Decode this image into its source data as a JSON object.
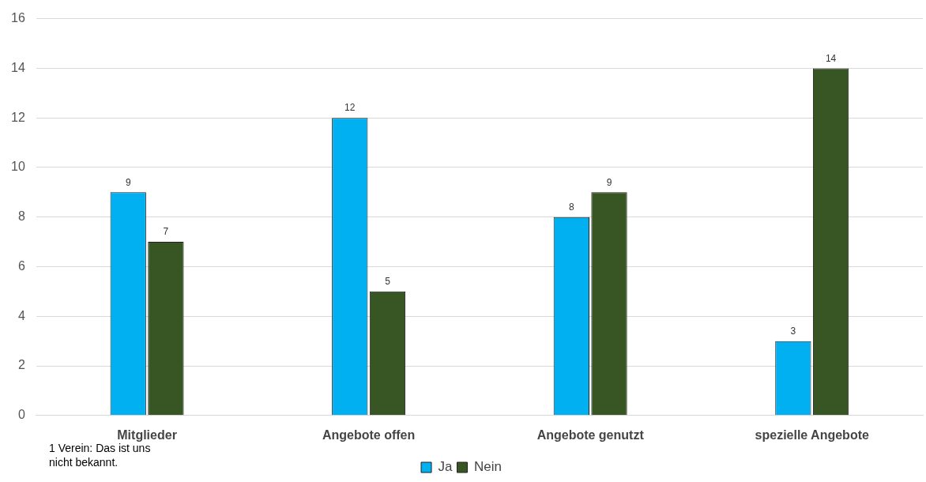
{
  "chart_data": {
    "type": "bar",
    "categories": [
      "Mitglieder",
      "Angebote offen",
      "Angebote genutzt",
      "spezielle Angebote"
    ],
    "series": [
      {
        "name": "Ja",
        "color": "#00b0f0",
        "values": [
          9,
          12,
          8,
          3
        ]
      },
      {
        "name": "Nein",
        "color": "#375623",
        "values": [
          7,
          5,
          9,
          14
        ]
      }
    ],
    "ylim": [
      0,
      16
    ],
    "yticks": [
      0,
      2,
      4,
      6,
      8,
      10,
      12,
      14,
      16
    ],
    "grid": "y",
    "legend": "bottom",
    "data_labels": true,
    "annotations": [
      "1 Verein: Das ist uns nicht bekannt."
    ]
  }
}
